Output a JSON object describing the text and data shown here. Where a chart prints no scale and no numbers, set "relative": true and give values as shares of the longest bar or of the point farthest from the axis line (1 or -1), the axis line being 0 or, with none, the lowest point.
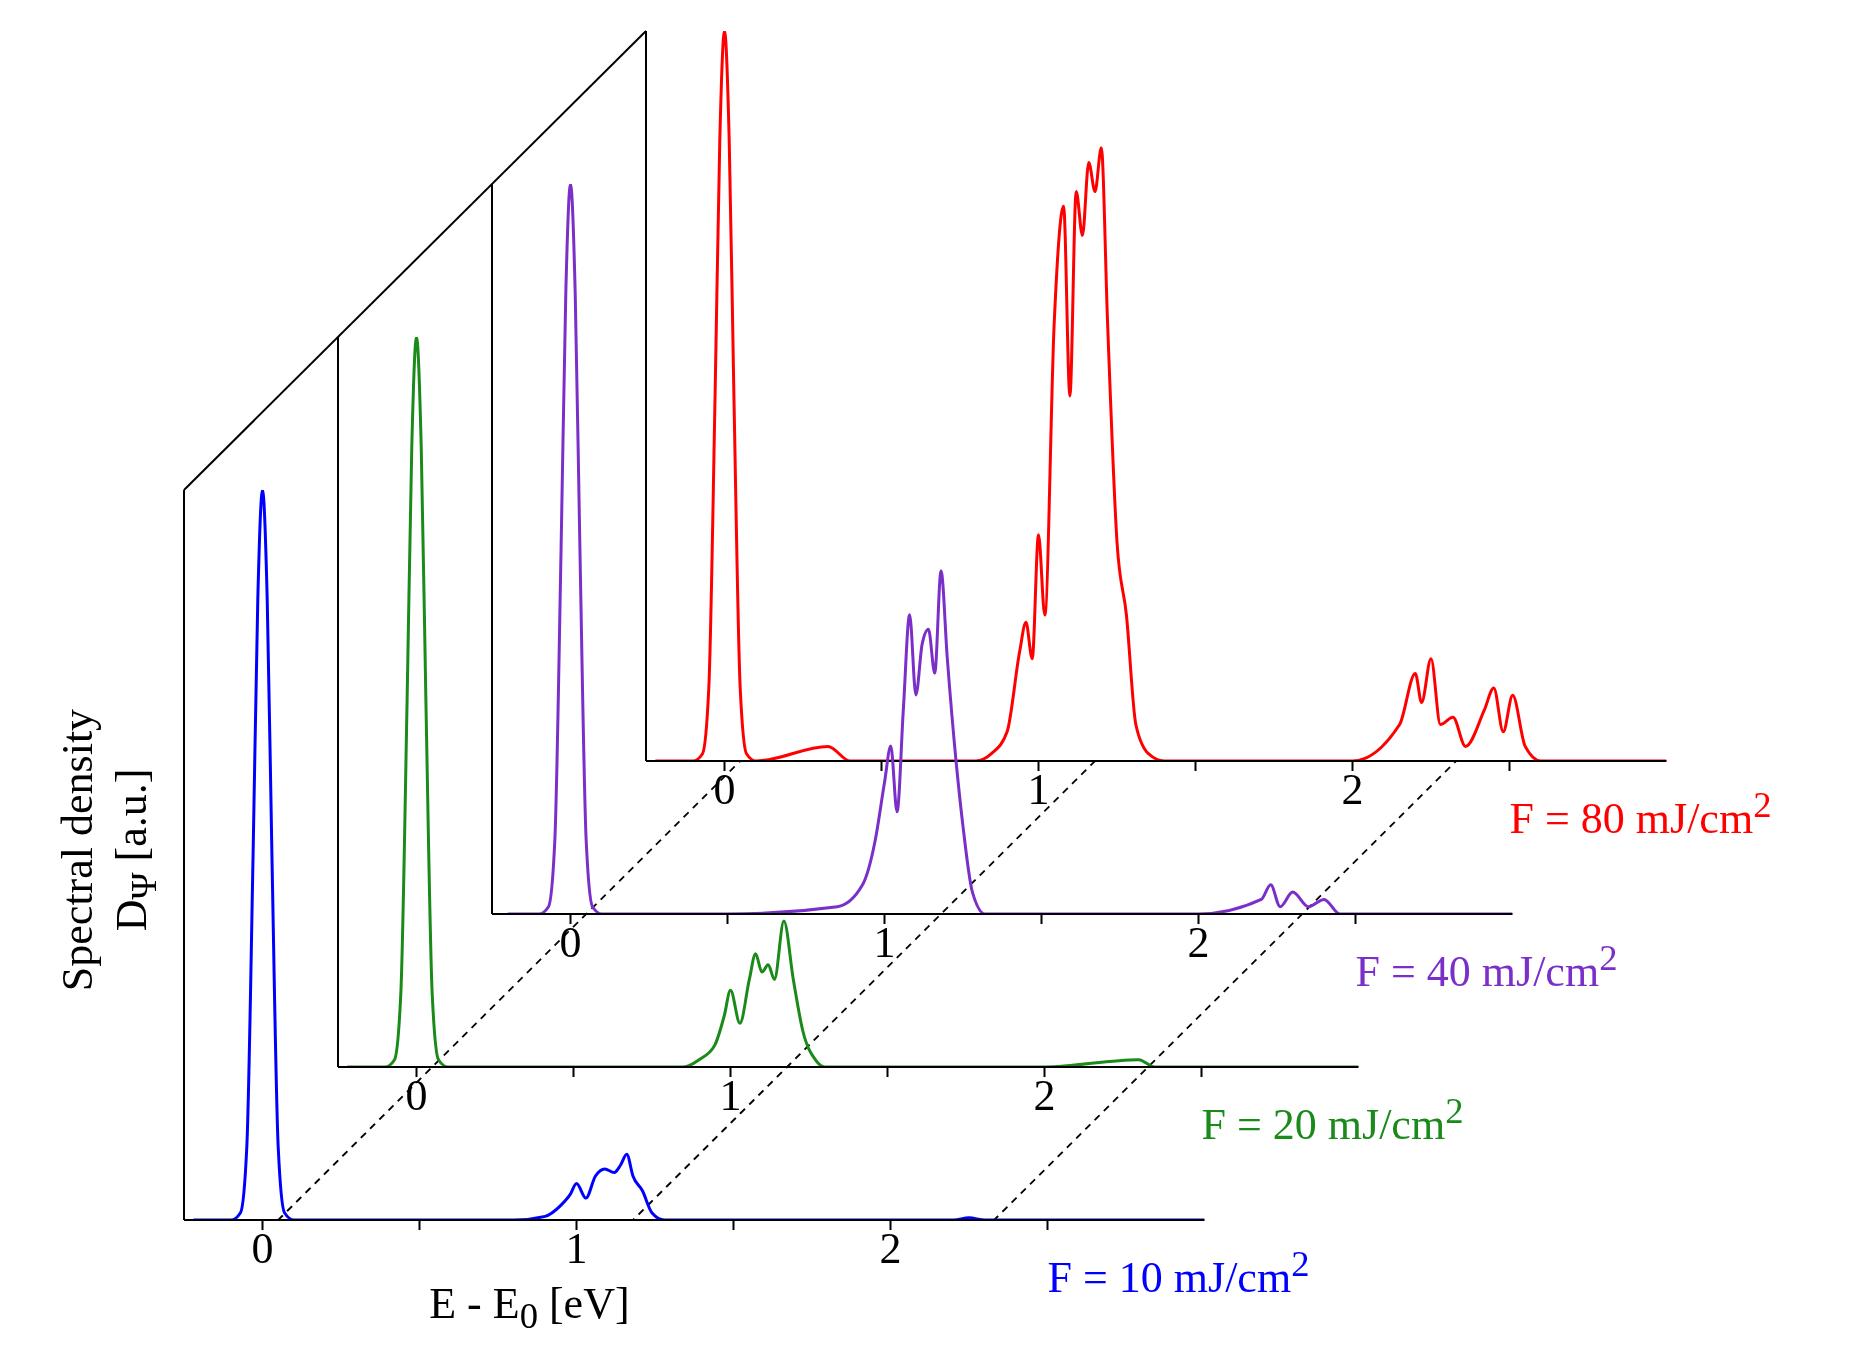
{
  "chart_data": [
    {
      "type": "line",
      "relative": true,
      "marker": "none",
      "line_style": "solid",
      "xlim": [
        -0.25,
        3
      ],
      "xticks": [
        0,
        {
          "value": 0.5,
          "label": null
        },
        1,
        {
          "value": 1.5,
          "label": null
        },
        2,
        {
          "value": 2.5,
          "label": null
        }
      ],
      "x": [
        -0.22,
        -0.1,
        -0.07,
        -0.05,
        -0.03,
        -0.015,
        0,
        0.015,
        0.03,
        0.05,
        0.07,
        0.1,
        0.33,
        0.4,
        0.8,
        0.85,
        0.9,
        0.94,
        0.96,
        0.98,
        1.0,
        1.02,
        1.05,
        1.08,
        1.1,
        1.12,
        1.14,
        1.16,
        1.18,
        1.2,
        1.22,
        1.25,
        1.28,
        1.31,
        1.35,
        1.4,
        2.0,
        2.15,
        2.2,
        2.22,
        2.25,
        2.28,
        2.32,
        2.36,
        2.42,
        2.45,
        2.48,
        2.51,
        2.55,
        2.6,
        3.0
      ],
      "series": [
        {
          "name": "F = 80 mJ/cm$^{2}$",
          "color": "#ff0000",
          "values": [
            0,
            0,
            0.01,
            0.1,
            0.5,
            0.85,
            1,
            0.85,
            0.5,
            0.1,
            0.01,
            0,
            0.02,
            0,
            0,
            0.01,
            0.04,
            0.15,
            0.19,
            0.14,
            0.31,
            0.2,
            0.6,
            0.76,
            0.5,
            0.78,
            0.72,
            0.82,
            0.78,
            0.84,
            0.6,
            0.3,
            0.2,
            0.05,
            0.01,
            0,
            0,
            0.05,
            0.12,
            0.08,
            0.14,
            0.05,
            0.06,
            0.02,
            0.07,
            0.1,
            0.04,
            0.09,
            0.02,
            0,
            0
          ]
        }
      ]
    },
    {
      "type": "line",
      "relative": true,
      "marker": "none",
      "line_style": "solid",
      "xlim": [
        -0.25,
        3
      ],
      "xticks": [
        0,
        {
          "value": 0.5,
          "label": null
        },
        1,
        {
          "value": 1.5,
          "label": null
        },
        2,
        {
          "value": 2.5,
          "label": null
        }
      ],
      "x": [
        -0.2,
        -0.1,
        -0.07,
        -0.05,
        -0.03,
        -0.015,
        0,
        0.015,
        0.03,
        0.05,
        0.07,
        0.1,
        0.5,
        0.85,
        0.93,
        0.97,
        1.0,
        1.02,
        1.04,
        1.06,
        1.08,
        1.1,
        1.12,
        1.14,
        1.16,
        1.18,
        1.2,
        1.23,
        1.25,
        1.28,
        1.32,
        2.0,
        2.2,
        2.23,
        2.26,
        2.3,
        2.35,
        2.4,
        2.45,
        3.0
      ],
      "series": [
        {
          "name": "F = 40 mJ/cm$^{2}$",
          "color": "#7b2fc9",
          "values": [
            0,
            0,
            0.01,
            0.1,
            0.5,
            0.85,
            1,
            0.85,
            0.5,
            0.1,
            0.01,
            0,
            0,
            0.01,
            0.04,
            0.1,
            0.18,
            0.23,
            0.14,
            0.28,
            0.41,
            0.3,
            0.37,
            0.39,
            0.33,
            0.47,
            0.35,
            0.2,
            0.12,
            0.03,
            0,
            0,
            0.02,
            0.04,
            0.01,
            0.03,
            0.01,
            0.02,
            0,
            0
          ]
        }
      ]
    },
    {
      "type": "line",
      "relative": true,
      "marker": "none",
      "line_style": "solid",
      "xlim": [
        -0.25,
        3
      ],
      "xticks": [
        0,
        {
          "value": 0.5,
          "label": null
        },
        1,
        {
          "value": 1.5,
          "label": null
        },
        2,
        {
          "value": 2.5,
          "label": null
        }
      ],
      "x": [
        -0.22,
        -0.1,
        -0.07,
        -0.05,
        -0.03,
        -0.015,
        0,
        0.015,
        0.03,
        0.05,
        0.07,
        0.1,
        0.5,
        0.85,
        0.9,
        0.95,
        0.98,
        1.0,
        1.03,
        1.06,
        1.08,
        1.1,
        1.12,
        1.14,
        1.17,
        1.2,
        1.23,
        1.27,
        1.3,
        2.0,
        2.3,
        2.35,
        3.0
      ],
      "series": [
        {
          "name": "F = 20 mJ/cm$^{2}$",
          "color": "#1a8a1a",
          "values": [
            0,
            0,
            0.01,
            0.1,
            0.5,
            0.85,
            1,
            0.85,
            0.5,
            0.1,
            0.01,
            0,
            0,
            0,
            0.01,
            0.03,
            0.07,
            0.105,
            0.06,
            0.12,
            0.155,
            0.13,
            0.14,
            0.12,
            0.2,
            0.12,
            0.05,
            0.01,
            0,
            0,
            0.01,
            0,
            0
          ]
        }
      ]
    },
    {
      "type": "line",
      "relative": true,
      "marker": "none",
      "line_style": "solid",
      "xlim": [
        -0.25,
        3
      ],
      "xticks": [
        0,
        {
          "value": 0.5,
          "label": null
        },
        1,
        {
          "value": 1.5,
          "label": null
        },
        2,
        {
          "value": 2.5,
          "label": null
        }
      ],
      "xlabel": "E - E$_{0}$  [eV]",
      "ylabel": "Spectral density\nD$_{Ψ}$  [a.u.]",
      "x": [
        -0.22,
        -0.1,
        -0.07,
        -0.05,
        -0.03,
        -0.015,
        0,
        0.015,
        0.03,
        0.05,
        0.07,
        0.1,
        0.4,
        0.8,
        0.9,
        0.95,
        0.98,
        1.0,
        1.03,
        1.06,
        1.09,
        1.12,
        1.14,
        1.16,
        1.18,
        1.21,
        1.24,
        1.28,
        1.5,
        2.2,
        2.25,
        2.3,
        3.0
      ],
      "series": [
        {
          "name": "F = 10 mJ/cm$^{2}$",
          "color": "#0000ff",
          "values": [
            0,
            0,
            0.01,
            0.1,
            0.5,
            0.85,
            1,
            0.85,
            0.5,
            0.1,
            0.01,
            0,
            0,
            0,
            0.005,
            0.02,
            0.035,
            0.05,
            0.03,
            0.06,
            0.07,
            0.065,
            0.075,
            0.09,
            0.06,
            0.04,
            0.01,
            0,
            0,
            0,
            0.003,
            0,
            0
          ]
        }
      ]
    }
  ]
}
